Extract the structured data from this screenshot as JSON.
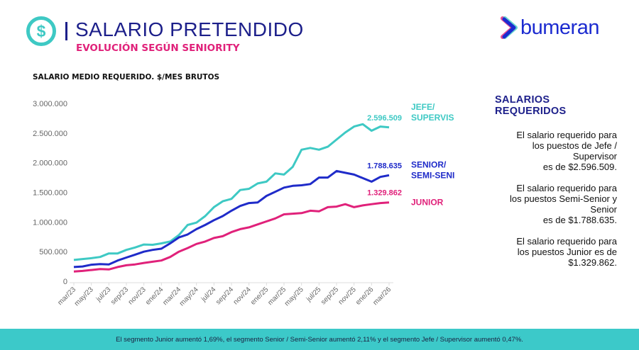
{
  "header": {
    "title": "SALARIO PRETENDIDO",
    "subtitle": "EVOLUCIÓN SEGÚN SENIORITY",
    "icon": "dollar-circle-icon"
  },
  "logo": {
    "text": "bumeran"
  },
  "colors": {
    "jefe": "#3ec9c4",
    "senior": "#1f2bc9",
    "junior": "#e0217a",
    "navy": "#1c1f8a",
    "footer": "#3cc9c9"
  },
  "side_panel": {
    "title": "SALARIOS REQUERIDOS",
    "paragraphs": [
      "El salario requerido para\nlos puestos de Jefe /\nSupervisor\nes de $2.596.509.",
      "El salario requerido para\nlos puestos Semi-Senior y\nSenior\nes de $1.788.635.",
      "El salario requerido para\nlos puestos Junior es de\n$1.329.862."
    ]
  },
  "footer": {
    "text": "El segmento Junior aumentó 1,69%, el segmento Senior / Semi-Senior aumentó 2,11% y el segmento Jefe / Supervisor aumentó 0,47%."
  },
  "chart_data": {
    "type": "line",
    "title": "SALARIO MEDIO REQUERIDO. $/MES BRUTOS",
    "ylim": [
      0,
      3000000
    ],
    "yticks": [
      0,
      500000,
      1000000,
      1500000,
      2000000,
      2500000,
      3000000
    ],
    "ytick_labels": [
      "0",
      "500.000",
      "1.000.000",
      "1.500.000",
      "2.000.000",
      "2.500.000",
      "3.000.000"
    ],
    "x": [
      "mar/23",
      "abr/23",
      "may/23",
      "jun/23",
      "jul/23",
      "ago/23",
      "sep/23",
      "oct/23",
      "nov/23",
      "dic/23",
      "ene/24",
      "feb/24",
      "mar/24",
      "abr/24",
      "may/24",
      "jun/24",
      "jul/24",
      "ago/24",
      "sep/24",
      "oct/24",
      "nov/24",
      "dic/24",
      "ene/25",
      "feb/25",
      "mar/25",
      "abr/25",
      "may/25",
      "jun/25",
      "jul/25",
      "ago/25",
      "sep/25",
      "oct/25",
      "nov/25",
      "dic/25",
      "ene/26",
      "feb/26",
      "mar/26"
    ],
    "xtick_labels": [
      "mar/23",
      "may/23",
      "jul/23",
      "sep/23",
      "nov/23",
      "ene/24",
      "mar/24",
      "may/24",
      "jul/24",
      "sep/24",
      "nov/24",
      "ene/25",
      "mar/25",
      "may/25",
      "jul/25",
      "sep/25",
      "nov/25",
      "ene/26",
      "mar/26"
    ],
    "grid": false,
    "legend": "right (inline labels)",
    "series": [
      {
        "name": "JEFE/ SUPERVISOR",
        "name_lines": [
          "JEFE/",
          "SUPERVISOR"
        ],
        "end_label": "2.596.509",
        "color": "#3ec9c4",
        "values": [
          360000,
          375000,
          390000,
          410000,
          470000,
          470000,
          530000,
          570000,
          620000,
          615000,
          640000,
          670000,
          780000,
          950000,
          990000,
          1100000,
          1250000,
          1350000,
          1390000,
          1540000,
          1560000,
          1650000,
          1680000,
          1820000,
          1800000,
          1930000,
          2220000,
          2250000,
          2220000,
          2270000,
          2390000,
          2510000,
          2610000,
          2650000,
          2540000,
          2610000,
          2596509
        ]
      },
      {
        "name": "SENIOR/ SEMI-SENIOR",
        "name_lines": [
          "SENIOR/",
          "SEMI-SENIOR"
        ],
        "end_label": "1.788.635",
        "color": "#1f2bc9",
        "values": [
          240000,
          250000,
          280000,
          290000,
          285000,
          350000,
          400000,
          450000,
          500000,
          530000,
          550000,
          640000,
          740000,
          790000,
          880000,
          950000,
          1030000,
          1100000,
          1190000,
          1270000,
          1320000,
          1330000,
          1440000,
          1510000,
          1580000,
          1610000,
          1620000,
          1640000,
          1750000,
          1750000,
          1860000,
          1830000,
          1800000,
          1740000,
          1680000,
          1760000,
          1788635
        ]
      },
      {
        "name": "JUNIOR",
        "name_lines": [
          "JUNIOR"
        ],
        "end_label": "1.329.862",
        "color": "#e0217a",
        "values": [
          165000,
          175000,
          190000,
          205000,
          200000,
          240000,
          270000,
          285000,
          310000,
          330000,
          350000,
          410000,
          500000,
          560000,
          630000,
          670000,
          730000,
          760000,
          830000,
          880000,
          910000,
          960000,
          1010000,
          1060000,
          1130000,
          1140000,
          1150000,
          1190000,
          1180000,
          1250000,
          1260000,
          1300000,
          1250000,
          1280000,
          1300000,
          1320000,
          1329862
        ]
      }
    ]
  }
}
